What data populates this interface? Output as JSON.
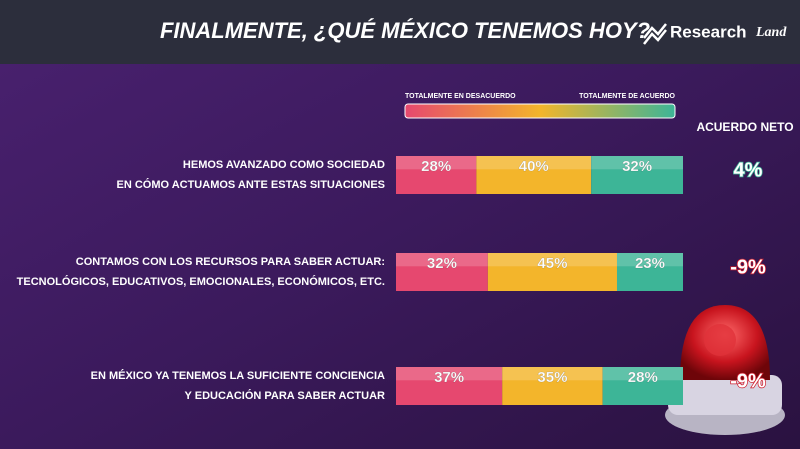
{
  "chart_data": {
    "type": "stacked-bar",
    "title": "FINALMENTE, ¿QUÉ MÉXICO TENEMOS HOY?",
    "brand": [
      "Research",
      "Land"
    ],
    "categories": [
      [
        "HEMOS AVANZADO COMO SOCIEDAD",
        "EN CÓMO ACTUAMOS ANTE ESTAS SITUACIONES"
      ],
      [
        "CONTAMOS CON LOS RECURSOS PARA SABER ACTUAR:",
        "TECNOLÓGICOS, EDUCATIVOS, EMOCIONALES, ECONÓMICOS, ETC."
      ],
      [
        "EN MÉXICO YA TENEMOS LA SUFICIENTE CONCIENCIA",
        "Y EDUCACIÓN PARA SABER ACTUAR"
      ]
    ],
    "series": [
      {
        "name": "TOTALMENTE EN DESACUERDO",
        "color": "#e6486f",
        "values": [
          28,
          32,
          37
        ],
        "value_labels": [
          "28%",
          "32%",
          "37%"
        ]
      },
      {
        "color": "#f3b52b",
        "values": [
          40,
          45,
          35
        ],
        "value_labels": [
          "40%",
          "45%",
          "35%"
        ]
      },
      {
        "name": "TOTALMENTE DE ACUERDO",
        "color": "#3db597",
        "values": [
          32,
          23,
          28
        ],
        "value_labels": [
          "32%",
          "23%",
          "28%"
        ]
      }
    ],
    "net": {
      "title": "ACUERDO NETO",
      "values": [
        4,
        -9,
        -9
      ],
      "value_labels": [
        "4%",
        "-9%",
        "-9%"
      ]
    }
  }
}
